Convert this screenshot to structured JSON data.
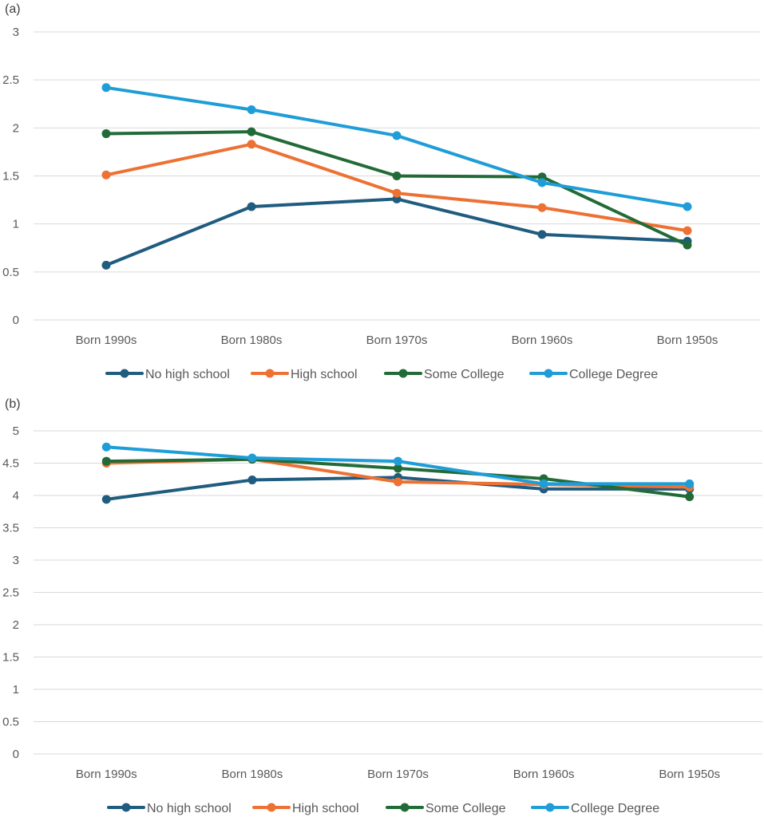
{
  "colors": {
    "No high school": "#1f5c7f",
    "High school": "#ec7133",
    "Some College": "#226b38",
    "College Degree": "#1f9dd7",
    "grid": "#d9d9d9",
    "tick_text": "#595959"
  },
  "chart_data": [
    {
      "panel_label": "(a)",
      "type": "line",
      "categories": [
        "Born 1990s",
        "Born 1980s",
        "Born 1970s",
        "Born 1960s",
        "Born 1950s"
      ],
      "ylim": [
        0,
        3
      ],
      "yticks": [
        "0",
        "0.5",
        "1",
        "1.5",
        "2",
        "2.5",
        "3"
      ],
      "grid": true,
      "legend_position": "bottom",
      "series": [
        {
          "name": "No high school",
          "values": [
            0.57,
            1.18,
            1.26,
            0.89,
            0.82
          ]
        },
        {
          "name": "High school",
          "values": [
            1.51,
            1.83,
            1.32,
            1.17,
            0.93
          ]
        },
        {
          "name": "Some College",
          "values": [
            1.94,
            1.96,
            1.5,
            1.49,
            0.78
          ]
        },
        {
          "name": "College Degree",
          "values": [
            2.42,
            2.19,
            1.92,
            1.43,
            1.18
          ]
        }
      ]
    },
    {
      "panel_label": "(b)",
      "type": "line",
      "categories": [
        "Born 1990s",
        "Born 1980s",
        "Born 1970s",
        "Born 1960s",
        "Born 1950s"
      ],
      "ylim": [
        0,
        5
      ],
      "yticks": [
        "0",
        "0.5",
        "1",
        "1.5",
        "2",
        "2.5",
        "3",
        "3.5",
        "4",
        "4.5",
        "5"
      ],
      "grid": true,
      "legend_position": "bottom",
      "series": [
        {
          "name": "No high school",
          "values": [
            3.94,
            4.24,
            4.28,
            4.1,
            4.1
          ]
        },
        {
          "name": "High school",
          "values": [
            4.5,
            4.56,
            4.21,
            4.17,
            4.13
          ]
        },
        {
          "name": "Some College",
          "values": [
            4.53,
            4.56,
            4.42,
            4.26,
            3.98
          ]
        },
        {
          "name": "College Degree",
          "values": [
            4.75,
            4.58,
            4.53,
            4.18,
            4.18
          ]
        }
      ]
    }
  ]
}
